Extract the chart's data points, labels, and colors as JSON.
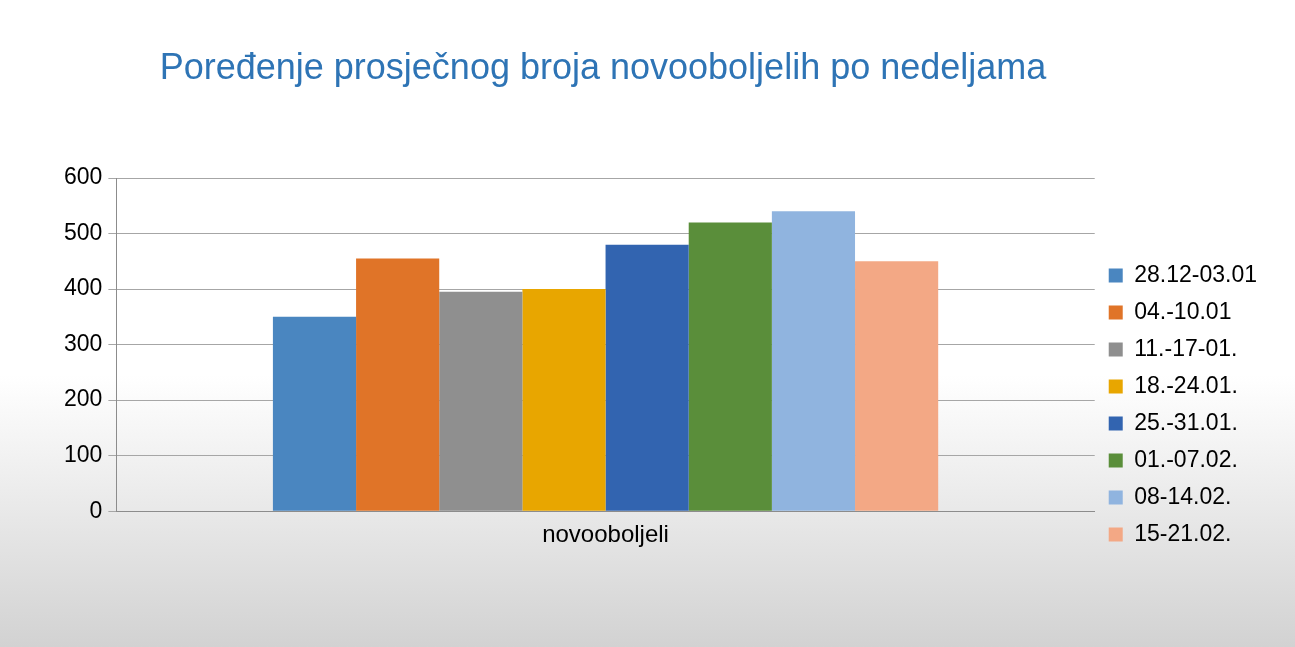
{
  "chart_data": {
    "type": "bar",
    "title": "Poređenje prosječnog broja novooboljelih po nedeljama",
    "categories": [
      "novooboljeli"
    ],
    "series": [
      {
        "name": "28.12-03.01",
        "color": "#4a86c0",
        "values": [
          350
        ]
      },
      {
        "name": "04.-10.01",
        "color": "#e07428",
        "values": [
          455
        ]
      },
      {
        "name": "11.-17-01.",
        "color": "#8f8f8f",
        "values": [
          395
        ]
      },
      {
        "name": "18.-24.01.",
        "color": "#e8a600",
        "values": [
          400
        ]
      },
      {
        "name": "25.-31.01.",
        "color": "#3264b0",
        "values": [
          480
        ]
      },
      {
        "name": "01.-07.02.",
        "color": "#5a8e3a",
        "values": [
          520
        ]
      },
      {
        "name": "08-14.02.",
        "color": "#90b4df",
        "values": [
          540
        ]
      },
      {
        "name": "15-21.02.",
        "color": "#f3a885",
        "values": [
          450
        ]
      }
    ],
    "ylim": [
      0,
      600
    ],
    "yticks": [
      0,
      100,
      200,
      300,
      400,
      500,
      600
    ],
    "grid": "y",
    "legend": "right"
  }
}
